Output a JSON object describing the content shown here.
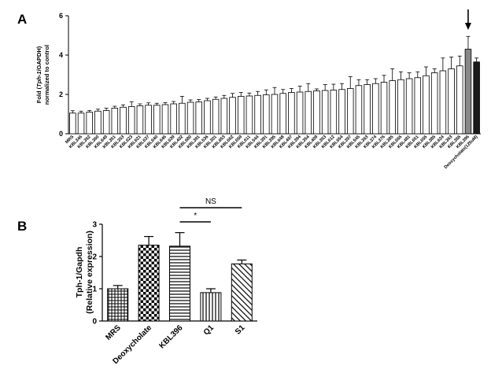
{
  "panels": {
    "a_label": "A",
    "b_label": "B"
  },
  "chart_data": [
    {
      "type": "bar",
      "panel": "A",
      "ylabel_line1_prefix": "Fold (",
      "ylabel_line1_italic": "Tph-1",
      "ylabel_line1_suffix": "/GAPDH)",
      "ylabel_line2": "normalized to control",
      "xlabel": "",
      "ylim": [
        0,
        6
      ],
      "yticks": [
        "0",
        "2",
        "4",
        "6"
      ],
      "grid": false,
      "categories": [
        "MRS",
        "KBL346",
        "KBL352",
        "KBL360",
        "KBL649",
        "KBL351",
        "KBL353",
        "KBL623",
        "KBL621",
        "KBL637",
        "KBL640",
        "KBL646",
        "KBL639",
        "KBL402",
        "KBL680",
        "KBL391",
        "KBL536",
        "KBL301",
        "KBL653",
        "KBL662",
        "KBL659",
        "KBL611",
        "KBL544",
        "KBL391",
        "KBL395",
        "KBL648",
        "KBL497",
        "KBL394",
        "KBL354",
        "KBL409",
        "KBL363",
        "KBL612",
        "KBL654",
        "KBL397",
        "KBL545",
        "KBL363",
        "KBL374",
        "KBL376",
        "KBL385",
        "KBL665",
        "KBL481",
        "KBL651",
        "KBL655",
        "KBL385",
        "KBL624",
        "KBL363",
        "KBL365",
        "KBL396",
        "Deoxycholate(125uM)"
      ],
      "values": [
        1.05,
        1.05,
        1.1,
        1.15,
        1.18,
        1.3,
        1.35,
        1.38,
        1.42,
        1.45,
        1.45,
        1.48,
        1.52,
        1.55,
        1.6,
        1.62,
        1.68,
        1.75,
        1.8,
        1.85,
        1.9,
        1.92,
        1.95,
        1.98,
        2.0,
        2.05,
        2.1,
        2.12,
        2.15,
        2.18,
        2.2,
        2.22,
        2.25,
        2.3,
        2.45,
        2.5,
        2.55,
        2.62,
        2.7,
        2.75,
        2.8,
        2.85,
        2.95,
        3.1,
        3.2,
        3.3,
        3.45,
        4.3,
        3.65
      ],
      "errors": [
        0.12,
        0.1,
        0.08,
        0.1,
        0.12,
        0.1,
        0.12,
        0.25,
        0.1,
        0.12,
        0.1,
        0.1,
        0.12,
        0.35,
        0.12,
        0.12,
        0.12,
        0.12,
        0.15,
        0.2,
        0.2,
        0.15,
        0.2,
        0.25,
        0.35,
        0.2,
        0.2,
        0.3,
        0.4,
        0.1,
        0.3,
        0.3,
        0.3,
        0.6,
        0.3,
        0.25,
        0.25,
        0.35,
        0.6,
        0.4,
        0.3,
        0.3,
        0.45,
        0.2,
        0.65,
        0.6,
        0.5,
        0.65,
        0.2
      ],
      "bar_styles": [
        "white",
        "white",
        "white",
        "white",
        "white",
        "white",
        "white",
        "white",
        "white",
        "white",
        "white",
        "white",
        "white",
        "white",
        "white",
        "white",
        "white",
        "white",
        "white",
        "white",
        "white",
        "white",
        "white",
        "white",
        "white",
        "white",
        "white",
        "white",
        "white",
        "white",
        "white",
        "white",
        "white",
        "white",
        "white",
        "white",
        "white",
        "white",
        "white",
        "white",
        "white",
        "white",
        "white",
        "white",
        "white",
        "white",
        "white",
        "gray",
        "black"
      ],
      "annotation": "arrow above KBL396"
    },
    {
      "type": "bar",
      "panel": "B",
      "ylabel_line1": "Tph-1/Gapdh",
      "ylabel_line2": "(Relative expression)",
      "xlabel": "",
      "ylim": [
        0,
        3
      ],
      "yticks": [
        "0",
        "1",
        "2",
        "3"
      ],
      "grid": false,
      "categories": [
        "MRS",
        "Deoxycholate",
        "KBL396",
        "Q1",
        "S1"
      ],
      "values": [
        1.0,
        2.35,
        2.32,
        0.88,
        1.77
      ],
      "errors": [
        0.1,
        0.27,
        0.42,
        0.12,
        0.12
      ],
      "patterns": [
        "dense-check",
        "check",
        "horizontal",
        "vertical",
        "diagonal"
      ],
      "significance": [
        {
          "from": "KBL396",
          "to": "Q1",
          "label": "*"
        },
        {
          "from": "KBL396",
          "to": "S1",
          "label": "NS"
        }
      ]
    }
  ]
}
